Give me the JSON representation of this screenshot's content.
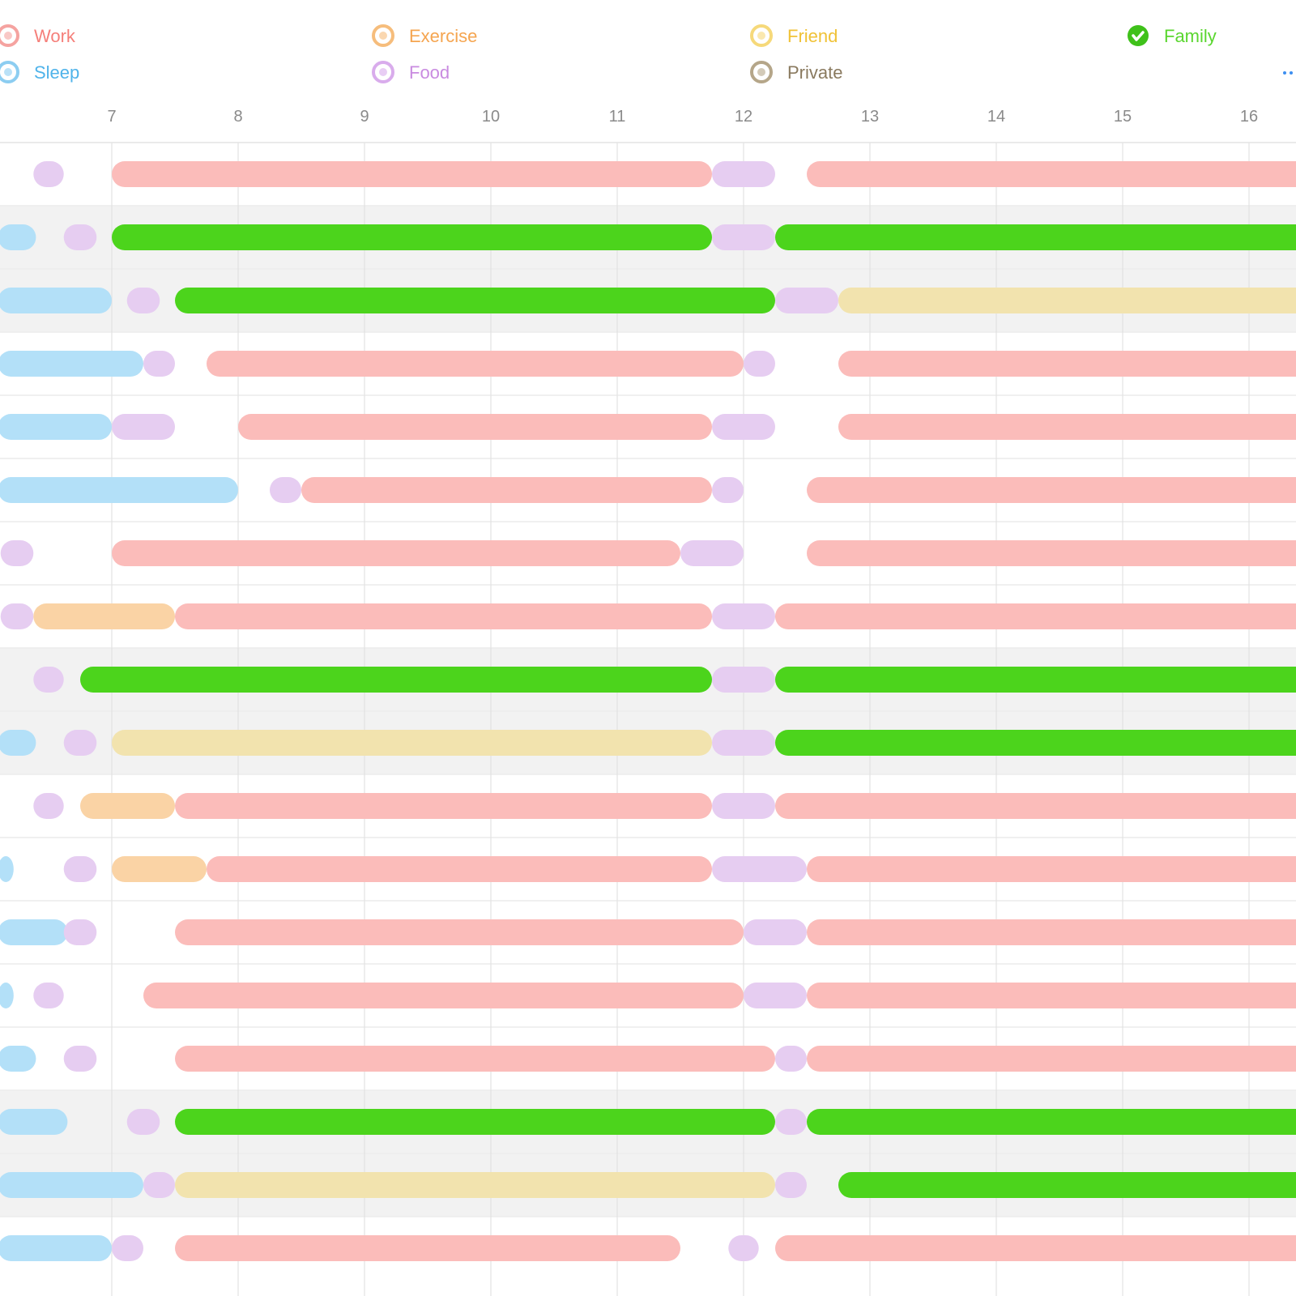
{
  "categories": [
    {
      "key": "work",
      "name": "Work",
      "color": "#fbbcba",
      "text_color": "#f57f7a",
      "icon": "circle-icon",
      "icon_color": "#f5a3a0"
    },
    {
      "key": "sleep",
      "name": "Sleep",
      "color": "#b3e0f8",
      "text_color": "#4fb3ea",
      "icon": "circle-icon",
      "icon_color": "#8ccdf1"
    },
    {
      "key": "exercise",
      "name": "Exercise",
      "color": "#fad3a5",
      "text_color": "#f5a550",
      "icon": "circle-icon",
      "icon_color": "#f6bd7c"
    },
    {
      "key": "food",
      "name": "Food",
      "color": "#e6cdf1",
      "text_color": "#c98be0",
      "icon": "circle-icon",
      "icon_color": "#d9acec"
    },
    {
      "key": "friend",
      "name": "Friend",
      "color": "#f2e3ae",
      "text_color": "#f0c237",
      "icon": "circle-icon",
      "icon_color": "#f6d97a"
    },
    {
      "key": "private",
      "name": "Private",
      "color": "#d8cdb9",
      "text_color": "#8a7a5f",
      "icon": "circle-icon",
      "icon_color": "#b5a689"
    },
    {
      "key": "family",
      "name": "Family",
      "color": "#4cd41c",
      "text_color": "#5ad62f",
      "icon": "check-circle-icon",
      "icon_color": "#3fc11a"
    }
  ],
  "chart_data": {
    "type": "timeline",
    "x_ticks": [
      7,
      8,
      9,
      10,
      11,
      12,
      13,
      14,
      15,
      16
    ],
    "x_range": [
      6.1,
      17.2
    ],
    "rows": [
      {
        "highlight": false,
        "segments": [
          {
            "c": "food",
            "s": 6.38,
            "e": 6.62
          },
          {
            "c": "work",
            "s": 7.0,
            "e": 11.75
          },
          {
            "c": "food",
            "s": 11.75,
            "e": 12.25
          },
          {
            "c": "work",
            "s": 12.5,
            "e": 17.2
          }
        ]
      },
      {
        "highlight": true,
        "segments": [
          {
            "c": "sleep",
            "s": 6.1,
            "e": 6.4
          },
          {
            "c": "food",
            "s": 6.62,
            "e": 6.88
          },
          {
            "c": "family",
            "s": 7.0,
            "e": 11.75
          },
          {
            "c": "food",
            "s": 11.75,
            "e": 12.25
          },
          {
            "c": "family",
            "s": 12.25,
            "e": 17.2
          }
        ]
      },
      {
        "highlight": true,
        "segments": [
          {
            "c": "sleep",
            "s": 6.1,
            "e": 7.0
          },
          {
            "c": "food",
            "s": 7.12,
            "e": 7.38
          },
          {
            "c": "family",
            "s": 7.5,
            "e": 12.25
          },
          {
            "c": "food",
            "s": 12.25,
            "e": 12.75
          },
          {
            "c": "friend",
            "s": 12.75,
            "e": 17.2
          }
        ]
      },
      {
        "highlight": false,
        "segments": [
          {
            "c": "sleep",
            "s": 6.1,
            "e": 7.25
          },
          {
            "c": "food",
            "s": 7.25,
            "e": 7.5
          },
          {
            "c": "work",
            "s": 7.75,
            "e": 12.0
          },
          {
            "c": "food",
            "s": 12.0,
            "e": 12.25
          },
          {
            "c": "work",
            "s": 12.75,
            "e": 17.2
          }
        ]
      },
      {
        "highlight": false,
        "segments": [
          {
            "c": "sleep",
            "s": 6.1,
            "e": 7.0
          },
          {
            "c": "food",
            "s": 7.0,
            "e": 7.5
          },
          {
            "c": "work",
            "s": 8.0,
            "e": 11.75
          },
          {
            "c": "food",
            "s": 11.75,
            "e": 12.25
          },
          {
            "c": "work",
            "s": 12.75,
            "e": 17.2
          }
        ]
      },
      {
        "highlight": false,
        "segments": [
          {
            "c": "sleep",
            "s": 6.1,
            "e": 8.0
          },
          {
            "c": "food",
            "s": 8.25,
            "e": 8.5
          },
          {
            "c": "work",
            "s": 8.5,
            "e": 11.75
          },
          {
            "c": "food",
            "s": 11.75,
            "e": 12.0
          },
          {
            "c": "work",
            "s": 12.5,
            "e": 17.2
          }
        ]
      },
      {
        "highlight": false,
        "segments": [
          {
            "c": "food",
            "s": 6.12,
            "e": 6.38
          },
          {
            "c": "work",
            "s": 7.0,
            "e": 11.5
          },
          {
            "c": "food",
            "s": 11.5,
            "e": 12.0
          },
          {
            "c": "work",
            "s": 12.5,
            "e": 17.2
          }
        ]
      },
      {
        "highlight": false,
        "segments": [
          {
            "c": "food",
            "s": 6.12,
            "e": 6.38
          },
          {
            "c": "exercise",
            "s": 6.38,
            "e": 7.5
          },
          {
            "c": "work",
            "s": 7.5,
            "e": 11.75
          },
          {
            "c": "food",
            "s": 11.75,
            "e": 12.25
          },
          {
            "c": "work",
            "s": 12.25,
            "e": 17.2
          }
        ]
      },
      {
        "highlight": true,
        "segments": [
          {
            "c": "food",
            "s": 6.38,
            "e": 6.62
          },
          {
            "c": "family",
            "s": 6.75,
            "e": 11.75
          },
          {
            "c": "food",
            "s": 11.75,
            "e": 12.25
          },
          {
            "c": "family",
            "s": 12.25,
            "e": 17.2
          }
        ]
      },
      {
        "highlight": true,
        "segments": [
          {
            "c": "sleep",
            "s": 6.1,
            "e": 6.4
          },
          {
            "c": "food",
            "s": 6.62,
            "e": 6.88
          },
          {
            "c": "friend",
            "s": 7.0,
            "e": 11.75
          },
          {
            "c": "food",
            "s": 11.75,
            "e": 12.25
          },
          {
            "c": "family",
            "s": 12.25,
            "e": 17.2
          }
        ]
      },
      {
        "highlight": false,
        "segments": [
          {
            "c": "food",
            "s": 6.38,
            "e": 6.62
          },
          {
            "c": "exercise",
            "s": 6.75,
            "e": 7.5
          },
          {
            "c": "work",
            "s": 7.5,
            "e": 11.75
          },
          {
            "c": "food",
            "s": 11.75,
            "e": 12.25
          },
          {
            "c": "work",
            "s": 12.25,
            "e": 17.2
          }
        ]
      },
      {
        "highlight": false,
        "segments": [
          {
            "c": "sleep",
            "s": 6.1,
            "e": 6.15
          },
          {
            "c": "food",
            "s": 6.62,
            "e": 6.88
          },
          {
            "c": "exercise",
            "s": 7.0,
            "e": 7.75
          },
          {
            "c": "work",
            "s": 7.75,
            "e": 11.75
          },
          {
            "c": "food",
            "s": 11.75,
            "e": 12.5
          },
          {
            "c": "work",
            "s": 12.5,
            "e": 17.2
          }
        ]
      },
      {
        "highlight": false,
        "segments": [
          {
            "c": "sleep",
            "s": 6.1,
            "e": 6.65
          },
          {
            "c": "food",
            "s": 6.62,
            "e": 6.88
          },
          {
            "c": "work",
            "s": 7.5,
            "e": 12.0
          },
          {
            "c": "food",
            "s": 12.0,
            "e": 12.5
          },
          {
            "c": "work",
            "s": 12.5,
            "e": 17.2
          }
        ]
      },
      {
        "highlight": false,
        "segments": [
          {
            "c": "sleep",
            "s": 6.1,
            "e": 6.15
          },
          {
            "c": "food",
            "s": 6.38,
            "e": 6.62
          },
          {
            "c": "work",
            "s": 7.25,
            "e": 12.0
          },
          {
            "c": "food",
            "s": 12.0,
            "e": 12.5
          },
          {
            "c": "work",
            "s": 12.5,
            "e": 17.2
          }
        ]
      },
      {
        "highlight": false,
        "segments": [
          {
            "c": "sleep",
            "s": 6.1,
            "e": 6.4
          },
          {
            "c": "food",
            "s": 6.62,
            "e": 6.88
          },
          {
            "c": "work",
            "s": 7.5,
            "e": 12.25
          },
          {
            "c": "food",
            "s": 12.25,
            "e": 12.5
          },
          {
            "c": "work",
            "s": 12.5,
            "e": 17.2
          }
        ]
      },
      {
        "highlight": true,
        "segments": [
          {
            "c": "sleep",
            "s": 6.1,
            "e": 6.65
          },
          {
            "c": "food",
            "s": 7.12,
            "e": 7.38
          },
          {
            "c": "family",
            "s": 7.5,
            "e": 12.25
          },
          {
            "c": "food",
            "s": 12.25,
            "e": 12.5
          },
          {
            "c": "family",
            "s": 12.5,
            "e": 17.2
          }
        ]
      },
      {
        "highlight": true,
        "segments": [
          {
            "c": "sleep",
            "s": 6.1,
            "e": 7.25
          },
          {
            "c": "food",
            "s": 7.25,
            "e": 7.5
          },
          {
            "c": "friend",
            "s": 7.5,
            "e": 12.25
          },
          {
            "c": "food",
            "s": 12.25,
            "e": 12.5
          },
          {
            "c": "family",
            "s": 12.75,
            "e": 17.2
          }
        ]
      },
      {
        "highlight": false,
        "segments": [
          {
            "c": "sleep",
            "s": 6.1,
            "e": 7.0
          },
          {
            "c": "food",
            "s": 7.0,
            "e": 7.25
          },
          {
            "c": "work",
            "s": 7.5,
            "e": 11.5
          },
          {
            "c": "food",
            "s": 11.88,
            "e": 12.12
          },
          {
            "c": "work",
            "s": 12.25,
            "e": 17.2
          }
        ]
      }
    ]
  }
}
